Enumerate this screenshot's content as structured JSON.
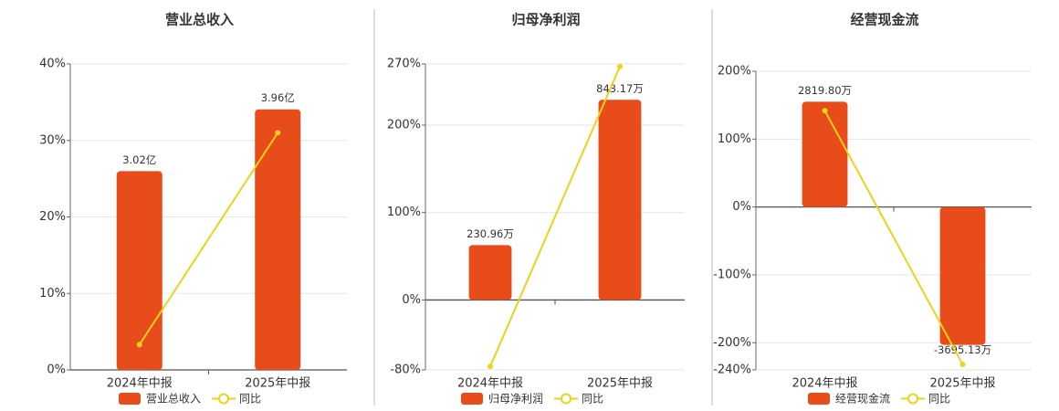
{
  "chart_data": [
    {
      "type": "bar",
      "title": "营业总收入",
      "categories": [
        "2024年中报",
        "2025年中报"
      ],
      "series": [
        {
          "name": "营业总收入",
          "type": "bar",
          "axis": "y2",
          "color": "#e84c1a",
          "values": [
            3.02,
            3.96
          ],
          "value_labels": [
            "3.02亿",
            "3.96亿"
          ]
        },
        {
          "name": "同比",
          "type": "line",
          "color": "#ecd21a",
          "values": [
            3.3,
            31
          ]
        }
      ],
      "ylim": [
        0,
        40
      ],
      "yticks": [
        {
          "value": 0,
          "label": "0%"
        },
        {
          "value": 10,
          "label": "10%"
        },
        {
          "value": 20,
          "label": "20%"
        },
        {
          "value": 30,
          "label": "30%"
        },
        {
          "value": 40,
          "label": "40%"
        }
      ],
      "y2lim": [
        0,
        4.65
      ],
      "grid": true
    },
    {
      "type": "bar",
      "title": "归母净利润",
      "categories": [
        "2024年中报",
        "2025年中报"
      ],
      "series": [
        {
          "name": "归母净利润",
          "type": "bar",
          "axis": "y2",
          "color": "#e84c1a",
          "values": [
            230.96,
            843.17
          ],
          "value_labels": [
            "230.96万",
            "843.17万"
          ]
        },
        {
          "name": "同比",
          "type": "line",
          "color": "#ecd21a",
          "values": [
            -76,
            267
          ]
        }
      ],
      "ylim": [
        -80,
        270
      ],
      "yticks": [
        {
          "value": -80,
          "label": "-80%"
        },
        {
          "value": 0,
          "label": "0%"
        },
        {
          "value": 100,
          "label": "100%"
        },
        {
          "value": 200,
          "label": "200%"
        },
        {
          "value": 270,
          "label": "270%"
        }
      ],
      "y2lim": [
        -294.6,
        994.2
      ],
      "grid": true
    },
    {
      "type": "bar",
      "title": "经营现金流",
      "categories": [
        "2024年中报",
        "2025年中报"
      ],
      "series": [
        {
          "name": "经营现金流",
          "type": "bar",
          "axis": "y2",
          "color": "#e84c1a",
          "values": [
            2819.8,
            -3695.13
          ],
          "value_labels": [
            "2819.80万",
            "-3695.13万"
          ]
        },
        {
          "name": "同比",
          "type": "line",
          "color": "#ecd21a",
          "values": [
            141.9,
            -232
          ]
        }
      ],
      "ylim": [
        -240,
        200
      ],
      "yticks": [
        {
          "value": -240,
          "label": "-240%"
        },
        {
          "value": -200,
          "label": "-200%"
        },
        {
          "value": -100,
          "label": "-100%"
        },
        {
          "value": 0,
          "label": "0%"
        },
        {
          "value": 100,
          "label": "100%"
        },
        {
          "value": 200,
          "label": "200%"
        }
      ],
      "y2lim": [
        -4366,
        3638
      ],
      "grid": true
    }
  ]
}
